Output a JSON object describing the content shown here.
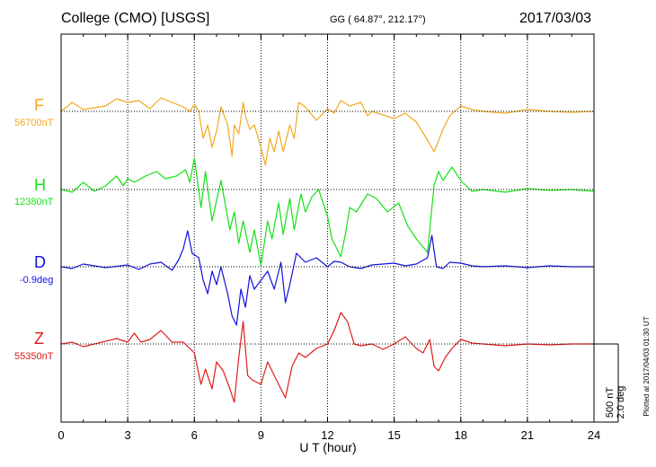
{
  "header": {
    "station": "College (CMO)  [USGS]",
    "coords": "GG ( 64.87°, 212.17°)",
    "date": "2017/03/03"
  },
  "footer": {
    "plotted": "Plotted at 2017/04/03 01:30 UT"
  },
  "scale": {
    "nt": "500 nT",
    "deg": "2.0 deg"
  },
  "chart_data": {
    "type": "line",
    "xlabel": "U T (hour)",
    "x_ticks": [
      "0",
      "3",
      "6",
      "9",
      "12",
      "15",
      "18",
      "21",
      "24"
    ],
    "xlim": [
      0,
      24
    ],
    "grid": true,
    "series": [
      {
        "name": "F",
        "baseline_label": "56700nT",
        "color": "#f2a81c",
        "points": [
          [
            0,
            0
          ],
          [
            0.5,
            -10
          ],
          [
            1,
            -2
          ],
          [
            2,
            -6
          ],
          [
            2.5,
            -14
          ],
          [
            3,
            -10
          ],
          [
            3.5,
            -12
          ],
          [
            4,
            -3
          ],
          [
            4.5,
            -15
          ],
          [
            5,
            -10
          ],
          [
            5.5,
            -5
          ],
          [
            5.8,
            0
          ],
          [
            6,
            -8
          ],
          [
            6.2,
            0
          ],
          [
            6.4,
            30
          ],
          [
            6.6,
            15
          ],
          [
            6.8,
            40
          ],
          [
            7,
            22
          ],
          [
            7.2,
            -5
          ],
          [
            7.5,
            15
          ],
          [
            7.7,
            50
          ],
          [
            7.8,
            15
          ],
          [
            8,
            25
          ],
          [
            8.2,
            -10
          ],
          [
            8.3,
            5
          ],
          [
            8.5,
            20
          ],
          [
            8.7,
            15
          ],
          [
            9,
            40
          ],
          [
            9.2,
            60
          ],
          [
            9.4,
            30
          ],
          [
            9.6,
            45
          ],
          [
            9.8,
            22
          ],
          [
            10,
            45
          ],
          [
            10.3,
            15
          ],
          [
            10.5,
            30
          ],
          [
            10.7,
            -10
          ],
          [
            11,
            -5
          ],
          [
            11.5,
            10
          ],
          [
            12,
            -3
          ],
          [
            12.3,
            2
          ],
          [
            12.6,
            -12
          ],
          [
            13,
            -6
          ],
          [
            13.5,
            -10
          ],
          [
            13.8,
            5
          ],
          [
            14,
            0
          ],
          [
            15,
            8
          ],
          [
            15.5,
            2
          ],
          [
            16,
            12
          ],
          [
            16.5,
            32
          ],
          [
            16.8,
            45
          ],
          [
            17.2,
            20
          ],
          [
            17.5,
            5
          ],
          [
            18,
            -6
          ],
          [
            18.5,
            -2
          ],
          [
            19,
            0
          ],
          [
            20,
            2
          ],
          [
            21,
            -2
          ],
          [
            22,
            0
          ],
          [
            23,
            1
          ],
          [
            24,
            0
          ]
        ]
      },
      {
        "name": "H",
        "baseline_label": "12380nT",
        "color": "#16e016",
        "points": [
          [
            0,
            0
          ],
          [
            0.5,
            3
          ],
          [
            1,
            -8
          ],
          [
            1.5,
            2
          ],
          [
            2,
            -4
          ],
          [
            2.5,
            -15
          ],
          [
            2.8,
            -4
          ],
          [
            3,
            -12
          ],
          [
            3.3,
            -8
          ],
          [
            3.8,
            -15
          ],
          [
            4.3,
            -20
          ],
          [
            4.7,
            -12
          ],
          [
            5.2,
            -15
          ],
          [
            5.6,
            -22
          ],
          [
            5.8,
            -8
          ],
          [
            6,
            -35
          ],
          [
            6.3,
            20
          ],
          [
            6.5,
            -20
          ],
          [
            6.8,
            35
          ],
          [
            7.2,
            -10
          ],
          [
            7.6,
            45
          ],
          [
            7.8,
            25
          ],
          [
            8,
            60
          ],
          [
            8.2,
            35
          ],
          [
            8.5,
            70
          ],
          [
            8.7,
            45
          ],
          [
            9,
            85
          ],
          [
            9.3,
            35
          ],
          [
            9.5,
            55
          ],
          [
            9.8,
            15
          ],
          [
            10,
            50
          ],
          [
            10.3,
            10
          ],
          [
            10.5,
            45
          ],
          [
            10.8,
            5
          ],
          [
            11,
            25
          ],
          [
            11.3,
            8
          ],
          [
            11.6,
            0
          ],
          [
            12,
            30
          ],
          [
            12.2,
            55
          ],
          [
            12.4,
            65
          ],
          [
            12.6,
            75
          ],
          [
            12.8,
            50
          ],
          [
            13,
            20
          ],
          [
            13.3,
            25
          ],
          [
            13.8,
            5
          ],
          [
            14.2,
            10
          ],
          [
            14.7,
            25
          ],
          [
            15.2,
            15
          ],
          [
            15.6,
            40
          ],
          [
            16,
            55
          ],
          [
            16.5,
            70
          ],
          [
            16.8,
            -5
          ],
          [
            17,
            -20
          ],
          [
            17.2,
            -10
          ],
          [
            17.6,
            -25
          ],
          [
            18,
            -10
          ],
          [
            18.5,
            2
          ],
          [
            19,
            0
          ],
          [
            20,
            3
          ],
          [
            21,
            -1
          ],
          [
            22,
            1
          ],
          [
            23,
            0
          ],
          [
            24,
            2
          ]
        ]
      },
      {
        "name": "D",
        "baseline_label": "-0.9deg",
        "color": "#1111dd",
        "points": [
          [
            0,
            0
          ],
          [
            0.5,
            2
          ],
          [
            1,
            -3
          ],
          [
            2,
            1
          ],
          [
            3,
            -2
          ],
          [
            3.5,
            3
          ],
          [
            4,
            -3
          ],
          [
            4.5,
            -5
          ],
          [
            5,
            4
          ],
          [
            5.3,
            -8
          ],
          [
            5.5,
            -20
          ],
          [
            5.7,
            -40
          ],
          [
            5.9,
            -15
          ],
          [
            6.2,
            -10
          ],
          [
            6.4,
            15
          ],
          [
            6.6,
            30
          ],
          [
            6.8,
            5
          ],
          [
            7,
            20
          ],
          [
            7.2,
            0
          ],
          [
            7.5,
            30
          ],
          [
            7.7,
            55
          ],
          [
            7.9,
            65
          ],
          [
            8.1,
            25
          ],
          [
            8.3,
            45
          ],
          [
            8.5,
            10
          ],
          [
            8.7,
            25
          ],
          [
            9,
            15
          ],
          [
            9.3,
            5
          ],
          [
            9.6,
            25
          ],
          [
            9.9,
            -5
          ],
          [
            10.1,
            40
          ],
          [
            10.3,
            20
          ],
          [
            10.6,
            -15
          ],
          [
            11,
            -5
          ],
          [
            11.5,
            -10
          ],
          [
            12,
            0
          ],
          [
            12.3,
            -6
          ],
          [
            12.6,
            -5
          ],
          [
            13,
            0
          ],
          [
            13.5,
            2
          ],
          [
            14,
            -2
          ],
          [
            15,
            -4
          ],
          [
            15.5,
            -1
          ],
          [
            16,
            -3
          ],
          [
            16.5,
            -10
          ],
          [
            16.7,
            -35
          ],
          [
            16.9,
            0
          ],
          [
            17.2,
            2
          ],
          [
            17.5,
            -5
          ],
          [
            18,
            -4
          ],
          [
            18.5,
            -1
          ],
          [
            19,
            0
          ],
          [
            20,
            -1
          ],
          [
            21,
            1
          ],
          [
            22,
            -1
          ],
          [
            23,
            0
          ],
          [
            24,
            0
          ]
        ]
      },
      {
        "name": "Z",
        "baseline_label": "55350nT",
        "color": "#e01b1b",
        "points": [
          [
            0,
            0
          ],
          [
            0.5,
            -2
          ],
          [
            1,
            3
          ],
          [
            2,
            -3
          ],
          [
            2.5,
            -6
          ],
          [
            3,
            -2
          ],
          [
            3.3,
            -12
          ],
          [
            3.6,
            -2
          ],
          [
            4,
            -5
          ],
          [
            4.5,
            -15
          ],
          [
            5,
            -2
          ],
          [
            5.5,
            -2
          ],
          [
            6,
            10
          ],
          [
            6.3,
            45
          ],
          [
            6.5,
            28
          ],
          [
            6.8,
            50
          ],
          [
            7,
            20
          ],
          [
            7.3,
            30
          ],
          [
            7.6,
            50
          ],
          [
            7.8,
            65
          ],
          [
            8,
            15
          ],
          [
            8.2,
            -25
          ],
          [
            8.4,
            35
          ],
          [
            8.6,
            40
          ],
          [
            9,
            45
          ],
          [
            9.3,
            20
          ],
          [
            9.5,
            30
          ],
          [
            9.8,
            45
          ],
          [
            10.1,
            60
          ],
          [
            10.4,
            25
          ],
          [
            10.7,
            10
          ],
          [
            11,
            15
          ],
          [
            11.5,
            5
          ],
          [
            12,
            0
          ],
          [
            12.3,
            -15
          ],
          [
            12.6,
            -35
          ],
          [
            12.9,
            -25
          ],
          [
            13.2,
            0
          ],
          [
            13.5,
            2
          ],
          [
            14,
            0
          ],
          [
            14.5,
            6
          ],
          [
            15,
            0
          ],
          [
            15.5,
            -8
          ],
          [
            15.8,
            0
          ],
          [
            16,
            5
          ],
          [
            16.3,
            10
          ],
          [
            16.6,
            -5
          ],
          [
            16.8,
            25
          ],
          [
            17,
            30
          ],
          [
            17.3,
            15
          ],
          [
            17.6,
            5
          ],
          [
            18,
            -5
          ],
          [
            18.5,
            -1
          ],
          [
            19,
            0
          ],
          [
            20,
            2
          ],
          [
            21,
            0
          ],
          [
            22,
            1
          ],
          [
            23,
            0
          ],
          [
            24,
            0
          ]
        ]
      }
    ]
  }
}
